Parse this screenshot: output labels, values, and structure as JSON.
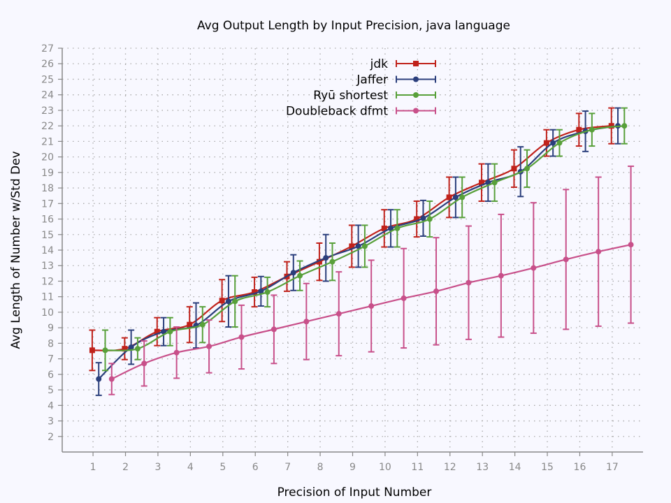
{
  "chart_data": {
    "type": "line",
    "title": "Avg Output Length by Input Precision, java language",
    "xlabel": "Precision of Input Number",
    "ylabel": "Avg Length of Number w/Std Dev",
    "x_ticks": [
      1,
      2,
      3,
      4,
      5,
      6,
      7,
      8,
      9,
      10,
      11,
      12,
      13,
      14,
      15,
      16,
      17
    ],
    "y_ticks": [
      2,
      3,
      4,
      5,
      6,
      7,
      8,
      9,
      10,
      11,
      12,
      13,
      14,
      15,
      16,
      17,
      18,
      19,
      20,
      21,
      22,
      23,
      24,
      25,
      26,
      27
    ],
    "xlim": [
      0.05,
      17.95
    ],
    "ylim": [
      1,
      27
    ],
    "grid": true,
    "legend_position": "top",
    "series": [
      {
        "name": "jdk",
        "color": "#c0221b",
        "marker": "square",
        "x": [
          1,
          2,
          3,
          4,
          5,
          6,
          7,
          8,
          9,
          10,
          11,
          12,
          13,
          14,
          15,
          16,
          17
        ],
        "values": [
          7.55,
          7.65,
          8.75,
          9.2,
          10.75,
          11.3,
          12.3,
          13.25,
          14.25,
          15.4,
          16.0,
          17.4,
          18.35,
          19.25,
          20.9,
          21.75,
          22.0
        ],
        "err": [
          1.3,
          0.7,
          0.9,
          1.15,
          1.35,
          0.95,
          0.95,
          1.2,
          1.35,
          1.2,
          1.15,
          1.3,
          1.2,
          1.2,
          0.85,
          1.05,
          1.15
        ]
      },
      {
        "name": "Jaffer",
        "color": "#2b3f7c",
        "marker": "circle",
        "x": [
          1,
          2,
          3,
          4,
          5,
          6,
          7,
          8,
          9,
          10,
          11,
          12,
          13,
          14,
          15,
          16,
          17
        ],
        "values": [
          5.7,
          7.75,
          8.75,
          9.15,
          10.7,
          11.35,
          12.55,
          13.5,
          14.25,
          15.4,
          16.05,
          17.4,
          18.35,
          19.05,
          20.9,
          21.65,
          22.0
        ],
        "err": [
          1.05,
          1.1,
          0.9,
          1.45,
          1.65,
          0.95,
          1.15,
          1.5,
          1.35,
          1.2,
          1.15,
          1.3,
          1.2,
          1.6,
          0.85,
          1.3,
          1.15
        ]
      },
      {
        "name": "Ryū shortest",
        "color": "#58a03a",
        "marker": "circle",
        "x": [
          1,
          2,
          3,
          4,
          5,
          6,
          7,
          8,
          9,
          10,
          11,
          12,
          13,
          14,
          15,
          16,
          17
        ],
        "values": [
          7.55,
          7.65,
          8.75,
          9.2,
          10.7,
          11.3,
          12.35,
          13.25,
          14.25,
          15.4,
          16.0,
          17.4,
          18.35,
          19.25,
          20.9,
          21.75,
          22.0
        ],
        "err": [
          1.3,
          0.7,
          0.9,
          1.15,
          1.65,
          0.95,
          0.95,
          1.2,
          1.35,
          1.2,
          1.15,
          1.3,
          1.2,
          1.2,
          0.85,
          1.05,
          1.15
        ]
      },
      {
        "name": "Doubleback dfmt",
        "color": "#c8508a",
        "marker": "circle",
        "x": [
          1,
          2,
          3,
          4,
          5,
          6,
          7,
          8,
          9,
          10,
          11,
          12,
          13,
          14,
          15,
          16,
          17
        ],
        "values": [
          5.7,
          6.7,
          7.4,
          7.8,
          8.4,
          8.9,
          9.4,
          9.9,
          10.4,
          10.9,
          11.35,
          11.9,
          12.35,
          12.85,
          13.4,
          13.9,
          14.35
        ],
        "err": [
          1.0,
          1.45,
          1.65,
          1.7,
          2.05,
          2.2,
          2.45,
          2.7,
          2.95,
          3.2,
          3.45,
          3.65,
          3.95,
          4.2,
          4.5,
          4.8,
          5.05
        ]
      }
    ]
  }
}
